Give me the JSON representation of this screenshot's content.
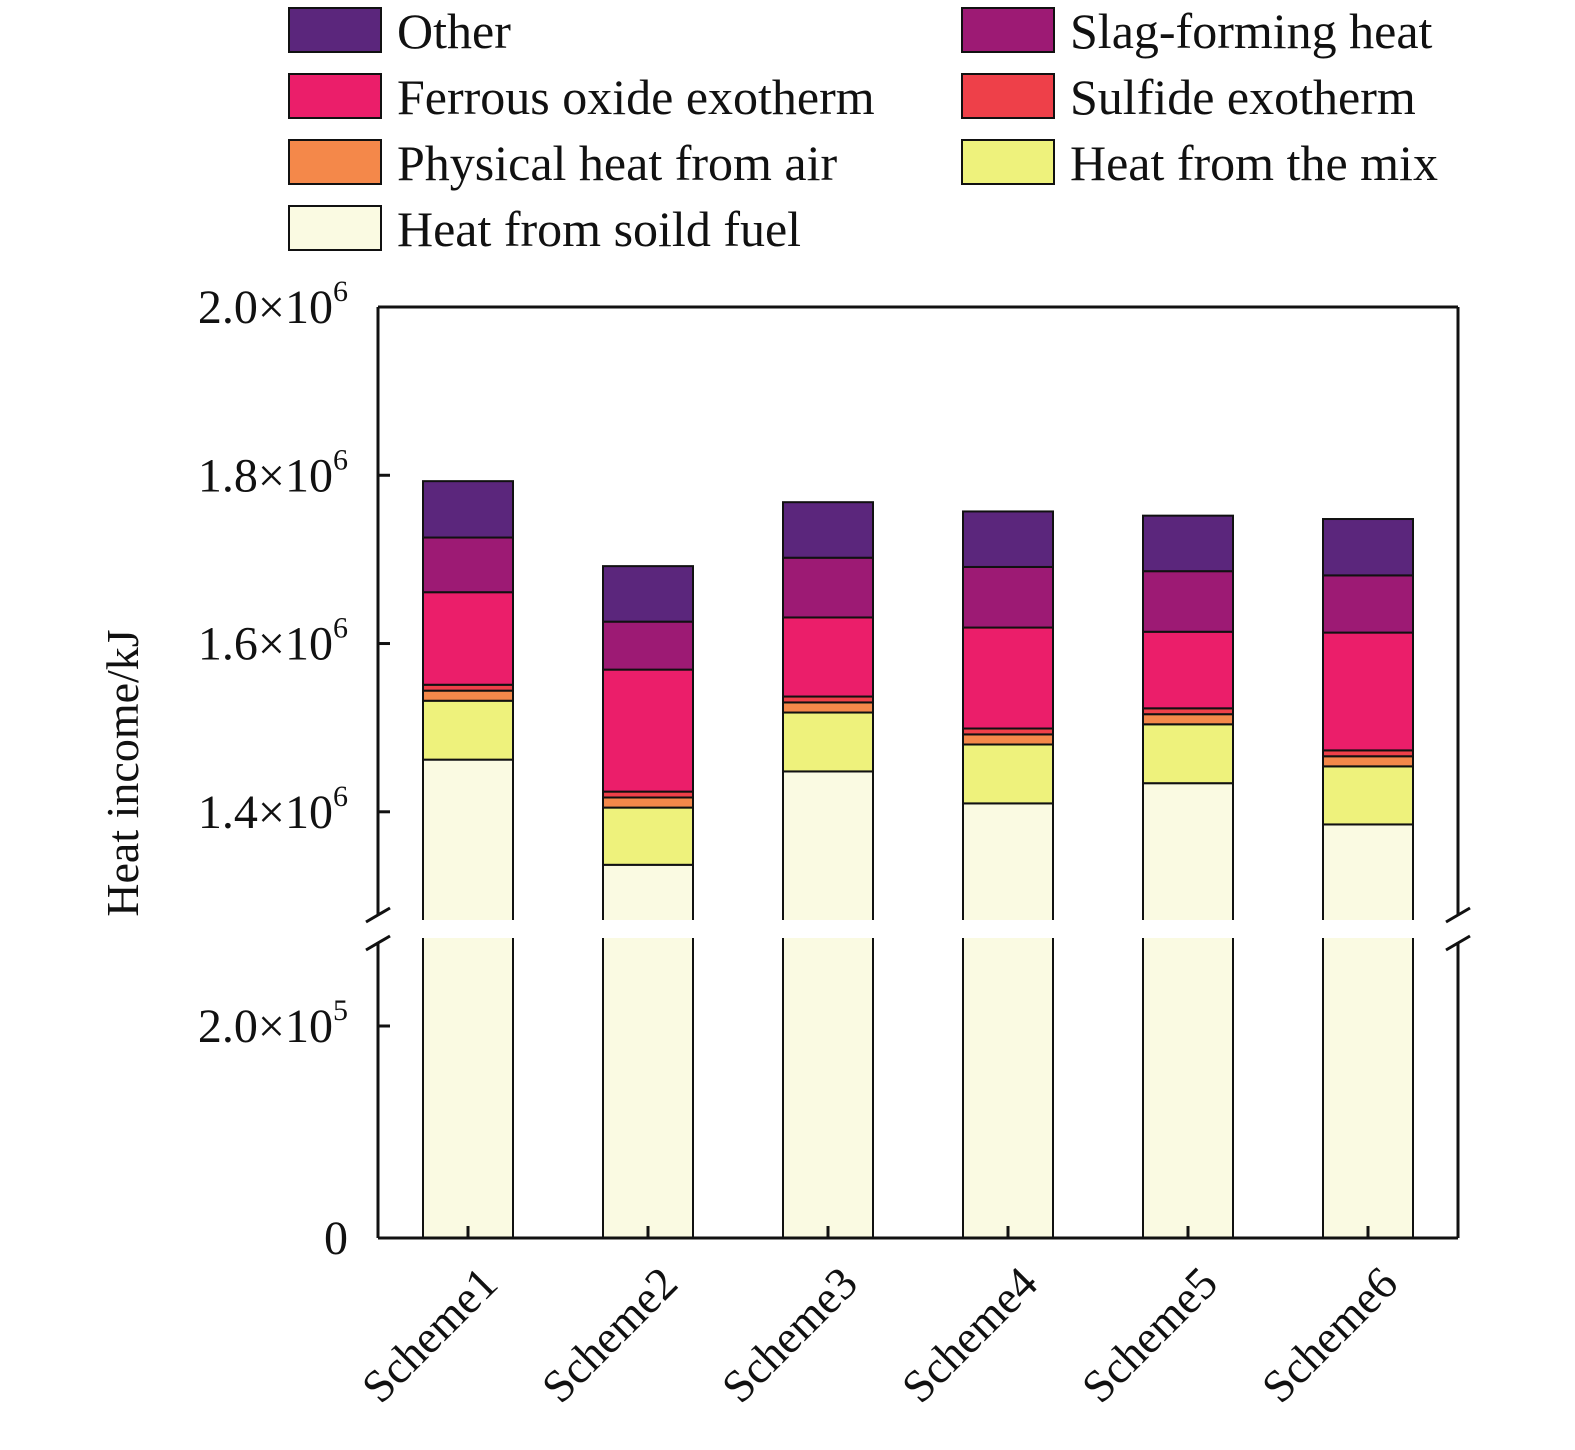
{
  "chart_data": {
    "type": "bar",
    "stacked": true,
    "ylabel": "Heat income/kJ",
    "xlabel": "",
    "categories": [
      "Scheme1",
      "Scheme2",
      "Scheme3",
      "Scheme4",
      "Scheme5",
      "Scheme6"
    ],
    "axis_break": {
      "from": 300000,
      "to": 1250000
    },
    "ylim": [
      0,
      2000000
    ],
    "grid": false,
    "legend_position": "top",
    "yticks": [
      {
        "value": 0,
        "mantissa": "0",
        "exponent": ""
      },
      {
        "value": 200000,
        "mantissa": "2.0×10",
        "exponent": "5"
      },
      {
        "value": 1400000,
        "mantissa": "1.4×10",
        "exponent": "6"
      },
      {
        "value": 1600000,
        "mantissa": "1.6×10",
        "exponent": "6"
      },
      {
        "value": 1800000,
        "mantissa": "1.8×10",
        "exponent": "6"
      },
      {
        "value": 2000000,
        "mantissa": "2.0×10",
        "exponent": "6"
      }
    ],
    "series": [
      {
        "name": "Heat from soild fuel",
        "color": "#FAFAE2",
        "values": [
          1462000,
          1337000,
          1448000,
          1410000,
          1434000,
          1385000
        ]
      },
      {
        "name": "Heat from the mix",
        "color": "#EEF27C",
        "values": [
          70000,
          68000,
          70000,
          70000,
          70000,
          69000
        ]
      },
      {
        "name": "Physical heat from air",
        "color": "#F4884A",
        "values": [
          12000,
          12000,
          12000,
          12000,
          12000,
          12000
        ]
      },
      {
        "name": "Sulfide exotherm",
        "color": "#EE4049",
        "values": [
          7000,
          7000,
          7000,
          7000,
          7000,
          7000
        ]
      },
      {
        "name": "Ferrous oxide exotherm",
        "color": "#EB1E6A",
        "values": [
          110000,
          145000,
          94000,
          120000,
          91000,
          140000
        ]
      },
      {
        "name": "Slag-forming heat",
        "color": "#9D1A74",
        "values": [
          65000,
          57000,
          71000,
          72000,
          72000,
          68000
        ]
      },
      {
        "name": "Other",
        "color": "#5B267C",
        "values": [
          67000,
          66000,
          66000,
          66000,
          66000,
          67000
        ]
      }
    ],
    "legend_order": [
      "Other",
      "Slag-forming heat",
      "Ferrous oxide exotherm",
      "Sulfide exotherm",
      "Physical heat from air",
      "Heat from the mix",
      "Heat from soild fuel"
    ]
  }
}
